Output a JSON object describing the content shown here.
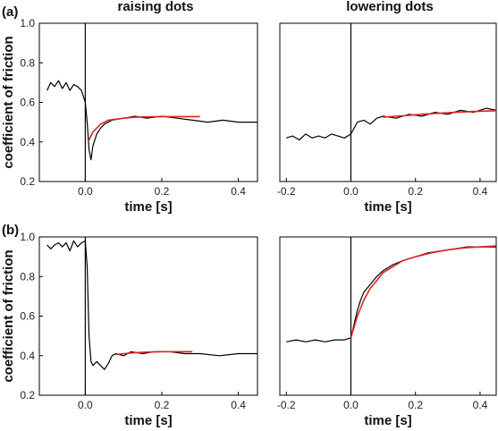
{
  "figure": {
    "column_titles": [
      "raising dots",
      "lowering dots"
    ],
    "row_letters": [
      "(a)",
      "(b)"
    ],
    "ylabel": "coefficient of friction",
    "xlabel": "time [s]"
  },
  "chart_data": [
    {
      "type": "line",
      "row": 0,
      "col": 0,
      "xlabel": "time [s]",
      "ylabel": "coefficient of friction",
      "xlim": [
        -0.12,
        0.45
      ],
      "ylim": [
        0.2,
        1.0
      ],
      "xticks": [
        0.0,
        0.2,
        0.4
      ],
      "xtick_labels": [
        "0.0",
        "0.2",
        "0.4"
      ],
      "yticks": [
        0.2,
        0.4,
        0.6,
        0.8,
        1.0
      ],
      "ytick_labels": [
        "0.2",
        "0.4",
        "0.6",
        "0.8",
        "1.0"
      ],
      "vline_x": 0.0,
      "series": [
        {
          "role": "measured",
          "color": "#000000",
          "x": [
            -0.1,
            -0.09,
            -0.08,
            -0.07,
            -0.06,
            -0.05,
            -0.04,
            -0.03,
            -0.02,
            -0.01,
            0.0,
            0.005,
            0.01,
            0.015,
            0.02,
            0.03,
            0.04,
            0.05,
            0.07,
            0.1,
            0.13,
            0.16,
            0.2,
            0.24,
            0.28,
            0.32,
            0.36,
            0.4,
            0.45
          ],
          "y": [
            0.66,
            0.7,
            0.68,
            0.71,
            0.67,
            0.7,
            0.66,
            0.69,
            0.68,
            0.66,
            0.6,
            0.5,
            0.36,
            0.31,
            0.38,
            0.44,
            0.47,
            0.49,
            0.51,
            0.52,
            0.53,
            0.52,
            0.53,
            0.52,
            0.51,
            0.5,
            0.51,
            0.5,
            0.5
          ]
        },
        {
          "role": "fit",
          "color": "#e02020",
          "x": [
            0.01,
            0.02,
            0.04,
            0.06,
            0.08,
            0.1,
            0.13,
            0.16,
            0.2,
            0.25,
            0.3
          ],
          "y": [
            0.41,
            0.45,
            0.49,
            0.51,
            0.515,
            0.52,
            0.525,
            0.527,
            0.528,
            0.528,
            0.528
          ]
        }
      ]
    },
    {
      "type": "line",
      "row": 0,
      "col": 1,
      "xlabel": "time [s]",
      "ylabel": "",
      "xlim": [
        -0.22,
        0.45
      ],
      "ylim": [
        0.2,
        1.0
      ],
      "xticks": [
        -0.2,
        0.0,
        0.2,
        0.4
      ],
      "xtick_labels": [
        "-0.2",
        "0.0",
        "0.2",
        "0.4"
      ],
      "yticks": [],
      "ytick_labels": [],
      "vline_x": 0.0,
      "series": [
        {
          "role": "measured",
          "color": "#000000",
          "x": [
            -0.2,
            -0.18,
            -0.16,
            -0.14,
            -0.12,
            -0.1,
            -0.08,
            -0.06,
            -0.04,
            -0.02,
            0.0,
            0.01,
            0.02,
            0.04,
            0.06,
            0.08,
            0.1,
            0.14,
            0.18,
            0.22,
            0.26,
            0.3,
            0.34,
            0.38,
            0.42,
            0.45
          ],
          "y": [
            0.42,
            0.43,
            0.41,
            0.44,
            0.42,
            0.43,
            0.42,
            0.44,
            0.43,
            0.42,
            0.44,
            0.47,
            0.5,
            0.51,
            0.49,
            0.52,
            0.53,
            0.52,
            0.54,
            0.53,
            0.55,
            0.54,
            0.56,
            0.55,
            0.57,
            0.56
          ]
        },
        {
          "role": "fit",
          "color": "#e02020",
          "x": [
            0.1,
            0.14,
            0.18,
            0.22,
            0.26,
            0.3,
            0.34,
            0.38,
            0.42,
            0.45
          ],
          "y": [
            0.525,
            0.53,
            0.535,
            0.54,
            0.544,
            0.548,
            0.551,
            0.554,
            0.556,
            0.558
          ]
        }
      ]
    },
    {
      "type": "line",
      "row": 1,
      "col": 0,
      "xlabel": "time [s]",
      "ylabel": "coefficient of friction",
      "xlim": [
        -0.12,
        0.45
      ],
      "ylim": [
        0.2,
        1.0
      ],
      "xticks": [
        0.0,
        0.2,
        0.4
      ],
      "xtick_labels": [
        "0.0",
        "0.2",
        "0.4"
      ],
      "yticks": [
        0.2,
        0.4,
        0.6,
        0.8,
        1.0
      ],
      "ytick_labels": [
        "0.2",
        "0.4",
        "0.6",
        "0.8",
        "1.0"
      ],
      "vline_x": 0.0,
      "series": [
        {
          "role": "measured",
          "color": "#000000",
          "x": [
            -0.1,
            -0.09,
            -0.08,
            -0.07,
            -0.06,
            -0.05,
            -0.04,
            -0.03,
            -0.02,
            -0.01,
            0.0,
            0.005,
            0.01,
            0.015,
            0.02,
            0.025,
            0.03,
            0.04,
            0.05,
            0.06,
            0.07,
            0.08,
            0.1,
            0.12,
            0.15,
            0.18,
            0.22,
            0.26,
            0.3,
            0.35,
            0.4,
            0.45
          ],
          "y": [
            0.96,
            0.94,
            0.96,
            0.97,
            0.95,
            0.97,
            0.93,
            0.98,
            0.95,
            0.97,
            0.98,
            0.85,
            0.5,
            0.37,
            0.35,
            0.36,
            0.37,
            0.35,
            0.33,
            0.36,
            0.4,
            0.41,
            0.4,
            0.42,
            0.41,
            0.42,
            0.42,
            0.41,
            0.41,
            0.4,
            0.41,
            0.41
          ]
        },
        {
          "role": "fit",
          "color": "#e02020",
          "x": [
            0.08,
            0.1,
            0.13,
            0.16,
            0.2,
            0.24,
            0.28
          ],
          "y": [
            0.405,
            0.41,
            0.415,
            0.418,
            0.42,
            0.42,
            0.42
          ]
        }
      ]
    },
    {
      "type": "line",
      "row": 1,
      "col": 1,
      "xlabel": "time [s]",
      "ylabel": "",
      "xlim": [
        -0.22,
        0.45
      ],
      "ylim": [
        0.2,
        1.0
      ],
      "xticks": [
        -0.2,
        0.0,
        0.2,
        0.4
      ],
      "xtick_labels": [
        "-0.2",
        "0.0",
        "0.2",
        "0.4"
      ],
      "yticks": [],
      "ytick_labels": [],
      "vline_x": 0.0,
      "series": [
        {
          "role": "measured",
          "color": "#000000",
          "x": [
            -0.2,
            -0.17,
            -0.14,
            -0.11,
            -0.08,
            -0.05,
            -0.02,
            0.0,
            0.01,
            0.02,
            0.03,
            0.04,
            0.06,
            0.08,
            0.1,
            0.13,
            0.16,
            0.2,
            0.24,
            0.28,
            0.32,
            0.36,
            0.4,
            0.45
          ],
          "y": [
            0.47,
            0.48,
            0.47,
            0.48,
            0.47,
            0.48,
            0.48,
            0.49,
            0.56,
            0.63,
            0.68,
            0.72,
            0.76,
            0.8,
            0.83,
            0.86,
            0.88,
            0.9,
            0.92,
            0.93,
            0.94,
            0.95,
            0.95,
            0.95
          ]
        },
        {
          "role": "fit",
          "color": "#e02020",
          "x": [
            0.0,
            0.02,
            0.04,
            0.06,
            0.08,
            0.1,
            0.13,
            0.16,
            0.2,
            0.25,
            0.3,
            0.35,
            0.4,
            0.45
          ],
          "y": [
            0.49,
            0.6,
            0.68,
            0.74,
            0.78,
            0.82,
            0.85,
            0.88,
            0.9,
            0.92,
            0.935,
            0.945,
            0.95,
            0.955
          ]
        }
      ]
    }
  ]
}
